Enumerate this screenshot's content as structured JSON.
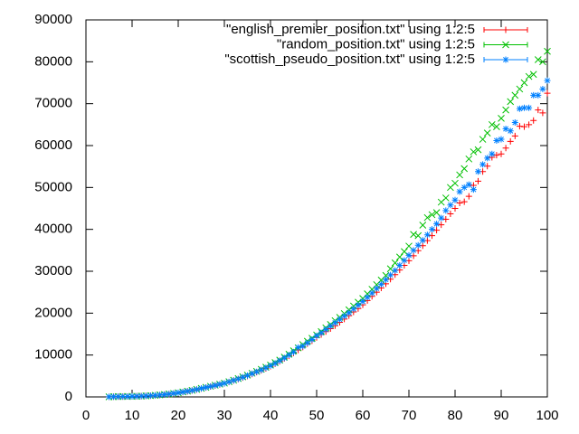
{
  "chart_data": {
    "type": "scatter",
    "x": [
      5,
      6,
      7,
      8,
      9,
      10,
      11,
      12,
      13,
      14,
      15,
      16,
      17,
      18,
      19,
      20,
      21,
      22,
      23,
      24,
      25,
      26,
      27,
      28,
      29,
      30,
      31,
      32,
      33,
      34,
      35,
      36,
      37,
      38,
      39,
      40,
      41,
      42,
      43,
      44,
      45,
      46,
      47,
      48,
      49,
      50,
      51,
      52,
      53,
      54,
      55,
      56,
      57,
      58,
      59,
      60,
      61,
      62,
      63,
      64,
      65,
      66,
      67,
      68,
      69,
      70,
      71,
      72,
      73,
      74,
      75,
      76,
      77,
      78,
      79,
      80,
      81,
      82,
      83,
      84,
      85,
      86,
      87,
      88,
      89,
      90,
      91,
      92,
      93,
      94,
      95,
      96,
      97,
      98,
      99,
      100
    ],
    "series": [
      {
        "name": "\"english_premier_position.txt\" using 1:2:5",
        "color": "#ff0000",
        "marker": "plus",
        "values": [
          30,
          50,
          70,
          90,
          100,
          120,
          150,
          190,
          240,
          300,
          380,
          460,
          560,
          680,
          820,
          980,
          1150,
          1330,
          1530,
          1750,
          2000,
          2230,
          2470,
          2720,
          2960,
          3200,
          3550,
          3900,
          4250,
          4600,
          5000,
          5450,
          5900,
          6350,
          6800,
          7300,
          7900,
          8500,
          9200,
          9800,
          10500,
          11200,
          11900,
          12700,
          13400,
          14200,
          14900,
          15600,
          16300,
          17000,
          17800,
          18600,
          19400,
          20300,
          21100,
          22000,
          23000,
          24000,
          25000,
          26000,
          27000,
          28100,
          29200,
          30300,
          31400,
          32500,
          33700,
          34900,
          36100,
          37300,
          38500,
          39800,
          41100,
          42400,
          43700,
          45000,
          46300,
          46600,
          47900,
          50500,
          51500,
          53800,
          55100,
          57200,
          57700,
          58000,
          59400,
          61000,
          62300,
          64600,
          64500,
          65000,
          66000,
          68500,
          67800,
          72500
        ]
      },
      {
        "name": "\"random_position.txt\" using 1:2:5",
        "color": "#00c000",
        "marker": "cross",
        "values": [
          30,
          50,
          80,
          100,
          110,
          130,
          160,
          200,
          250,
          310,
          390,
          480,
          580,
          700,
          850,
          1000,
          1180,
          1370,
          1570,
          1800,
          2050,
          2300,
          2550,
          2800,
          3050,
          3300,
          3650,
          4000,
          4400,
          4800,
          5200,
          5650,
          6100,
          6600,
          7100,
          7600,
          8200,
          8800,
          9500,
          10200,
          11000,
          11700,
          12500,
          13300,
          14000,
          14800,
          15600,
          16500,
          17300,
          18200,
          19000,
          19900,
          20800,
          21700,
          22600,
          23500,
          24600,
          25700,
          26800,
          27900,
          29000,
          30600,
          32000,
          33400,
          34700,
          36000,
          38800,
          38500,
          41000,
          42800,
          43500,
          44000,
          46500,
          47500,
          50000,
          51000,
          53000,
          54500,
          56800,
          58500,
          59000,
          61500,
          63000,
          65000,
          64500,
          66500,
          68500,
          70500,
          72000,
          73500,
          75000,
          76500,
          77000,
          80500,
          80000,
          82500
        ]
      },
      {
        "name": "\"scottish_pseudo_position.txt\" using 1:2:5",
        "color": "#0080ff",
        "marker": "star",
        "values": [
          30,
          50,
          70,
          90,
          110,
          130,
          160,
          200,
          250,
          310,
          390,
          470,
          570,
          690,
          830,
          990,
          1160,
          1350,
          1550,
          1770,
          2020,
          2260,
          2500,
          2750,
          3000,
          3250,
          3600,
          3950,
          4300,
          4700,
          5100,
          5550,
          6000,
          6450,
          6950,
          7450,
          8000,
          8650,
          9300,
          10000,
          10700,
          11800,
          12100,
          12900,
          13700,
          14600,
          15300,
          16100,
          16900,
          17700,
          18500,
          19300,
          20100,
          21000,
          21900,
          22800,
          23800,
          24800,
          25900,
          26900,
          28000,
          29100,
          30200,
          31400,
          32600,
          33800,
          35000,
          36200,
          37400,
          38700,
          40000,
          41300,
          42700,
          44500,
          45800,
          47000,
          49000,
          50000,
          50700,
          49500,
          53800,
          55500,
          57000,
          58000,
          61200,
          61500,
          64000,
          63500,
          65500,
          68800,
          69000,
          69000,
          72000,
          72000,
          73500,
          75500
        ]
      }
    ],
    "xlim": [
      0,
      100
    ],
    "xticks": [
      0,
      10,
      20,
      30,
      40,
      50,
      60,
      70,
      80,
      90,
      100
    ],
    "ylim": [
      0,
      90000
    ],
    "yticks": [
      0,
      10000,
      20000,
      30000,
      40000,
      50000,
      60000,
      70000,
      80000,
      90000
    ],
    "grid": false,
    "legend": "top-right"
  }
}
